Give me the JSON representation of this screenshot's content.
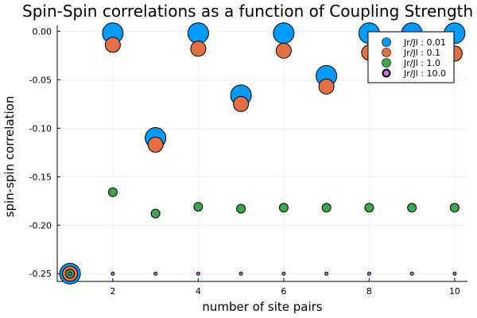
{
  "chart_data": {
    "type": "scatter",
    "title": "Spin-Spin correlations as a function of Coupling Strength",
    "xlabel": "number of site pairs",
    "ylabel": "spin-spin correlation",
    "xlim": [
      0.7,
      10.3
    ],
    "ylim": [
      -0.258,
      0.006
    ],
    "xticks": [
      2,
      4,
      6,
      8,
      10
    ],
    "xtick_labels": [
      "2",
      "4",
      "6",
      "8",
      "10"
    ],
    "yticks": [
      0.0,
      -0.05,
      -0.1,
      -0.15,
      -0.2,
      -0.25
    ],
    "ytick_labels": [
      "0.00",
      "-0.05",
      "-0.10",
      "-0.15",
      "-0.20",
      "-0.25"
    ],
    "grid": true,
    "legend_position": "top-right",
    "series": [
      {
        "name": "Jr/Jl : 0.01",
        "color": "#009AFA",
        "marker_size": "large",
        "x": [
          1,
          2,
          3,
          4,
          5,
          6,
          7,
          8,
          9,
          10
        ],
        "y": [
          -0.25,
          -0.002,
          -0.11,
          -0.002,
          -0.066,
          -0.002,
          -0.046,
          -0.002,
          -0.002,
          -0.002
        ]
      },
      {
        "name": "Jr/Jl : 0.1",
        "color": "#E36F47",
        "marker_size": "medium-large",
        "x": [
          1,
          2,
          3,
          4,
          5,
          6,
          7,
          8,
          9,
          10
        ],
        "y": [
          -0.25,
          -0.014,
          -0.117,
          -0.018,
          -0.075,
          -0.02,
          -0.057,
          -0.022,
          -0.022,
          -0.023
        ]
      },
      {
        "name": "Jr/Jl : 1.0",
        "color": "#3EA44E",
        "marker_size": "medium",
        "x": [
          1,
          2,
          3,
          4,
          5,
          6,
          7,
          8,
          9,
          10
        ],
        "y": [
          -0.25,
          -0.166,
          -0.188,
          -0.181,
          -0.183,
          -0.182,
          -0.182,
          -0.182,
          -0.182,
          -0.182
        ]
      },
      {
        "name": "Jr/Jl : 10.0",
        "color": "#C371D2",
        "marker_size": "small",
        "x": [
          1,
          2,
          3,
          4,
          5,
          6,
          7,
          8,
          9,
          10
        ],
        "y": [
          -0.25,
          -0.25,
          -0.25,
          -0.25,
          -0.25,
          -0.25,
          -0.25,
          -0.25,
          -0.25,
          -0.25
        ]
      }
    ]
  }
}
